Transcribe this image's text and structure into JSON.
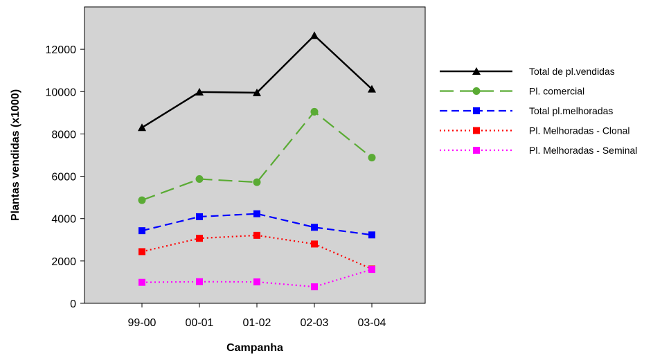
{
  "chart_data": {
    "type": "line",
    "categories": [
      "99-00",
      "00-01",
      "01-02",
      "02-03",
      "03-04"
    ],
    "xlabel": "Campanha",
    "ylabel": "Plantas vendidas (x1000)",
    "ylim": [
      0,
      14000
    ],
    "yticks": [
      "0",
      "2000",
      "4000",
      "6000",
      "8000",
      "10000",
      "12000"
    ],
    "ytick_values": [
      0,
      2000,
      4000,
      6000,
      8000,
      10000,
      12000
    ],
    "plot_background": "#d3d3d3",
    "grid": false,
    "legend_position": "right",
    "series": [
      {
        "name": "Total de pl.vendidas",
        "values": [
          8300,
          9980,
          9950,
          12650,
          10120
        ],
        "color": "#000000",
        "dash": "solid",
        "marker": "triangle"
      },
      {
        "name": "Pl. comercial",
        "values": [
          4870,
          5870,
          5720,
          9050,
          6880
        ],
        "color": "#5aab34",
        "dash": "longdash",
        "marker": "circle"
      },
      {
        "name": "Total pl.melhoradas",
        "values": [
          3430,
          4090,
          4230,
          3590,
          3230
        ],
        "color": "#0000ff",
        "dash": "dash",
        "marker": "square"
      },
      {
        "name": "Pl. Melhoradas - Clonal",
        "values": [
          2440,
          3070,
          3210,
          2800,
          1620
        ],
        "color": "#ff0000",
        "dash": "dot",
        "marker": "square"
      },
      {
        "name": "Pl. Melhoradas - Seminal",
        "values": [
          990,
          1020,
          1010,
          780,
          1600
        ],
        "color": "#ff00ff",
        "dash": "dot",
        "marker": "square"
      }
    ]
  }
}
